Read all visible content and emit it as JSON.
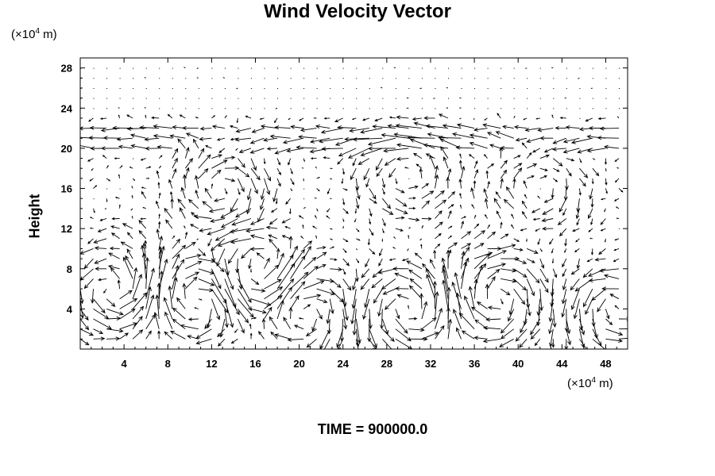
{
  "chart_data": {
    "type": "quiver",
    "title": "Wind Velocity Vector",
    "ylabel": "Height",
    "xunit": {
      "prefix": "(×10",
      "exp": "4",
      "suffix": " m)"
    },
    "yunit": {
      "prefix": "(×10",
      "exp": "4",
      "suffix": " m)"
    },
    "footer": "TIME = 900000.0",
    "xlim": [
      0,
      50
    ],
    "ylim": [
      0,
      29
    ],
    "xticks": [
      4,
      8,
      12,
      16,
      20,
      24,
      28,
      32,
      36,
      40,
      44,
      48
    ],
    "yticks": [
      4,
      8,
      12,
      16,
      20,
      24,
      28
    ],
    "grid": false,
    "field": {
      "x_start": 0,
      "x_step": 1.2,
      "nx": 42,
      "y_start": 1,
      "y_step": 1.0,
      "ny": 28,
      "jet_heights": [
        20,
        21,
        22
      ],
      "convective_cells": [
        {
          "x": 3,
          "y": 6,
          "strength": 1.0
        },
        {
          "x": 11,
          "y": 5,
          "strength": -1.0
        },
        {
          "x": 16,
          "y": 7,
          "strength": 1.0
        },
        {
          "x": 20,
          "y": 4,
          "strength": -1.0
        },
        {
          "x": 30,
          "y": 4,
          "strength": 1.0
        },
        {
          "x": 38,
          "y": 5,
          "strength": -1.0
        },
        {
          "x": 49,
          "y": 4,
          "strength": 1.0
        },
        {
          "x": 13,
          "y": 16,
          "strength": -0.8
        },
        {
          "x": 30,
          "y": 17,
          "strength": 0.6
        },
        {
          "x": 42,
          "y": 16,
          "strength": -0.6
        }
      ]
    }
  }
}
